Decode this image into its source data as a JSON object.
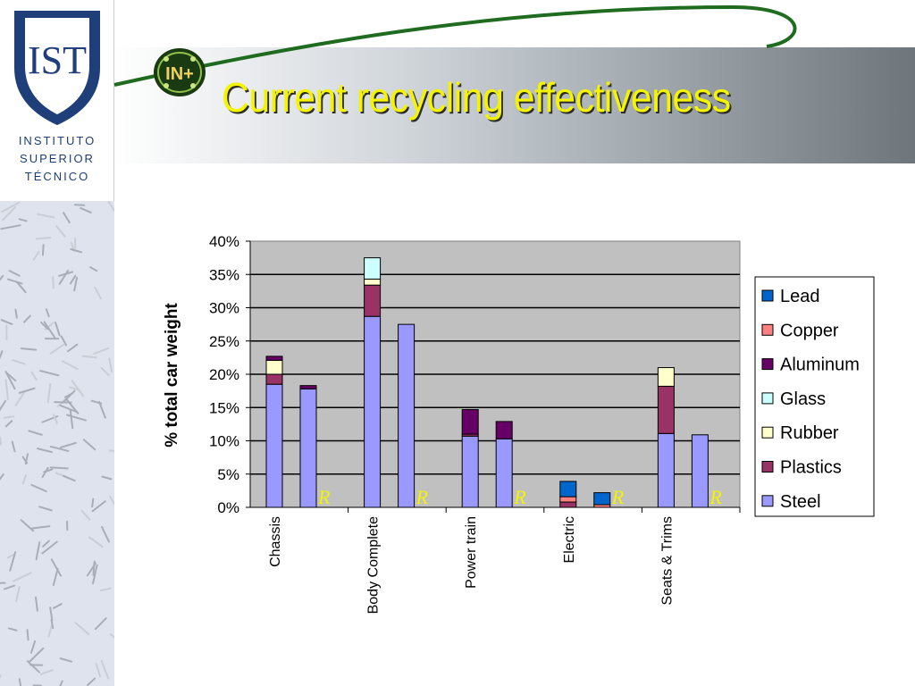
{
  "slide": {
    "title": "Current recycling effectiveness",
    "institution_lines": [
      "INSTITUTO",
      "SUPERIOR",
      "TÉCNICO"
    ],
    "logo_text": "IST",
    "badge_text": "IN+"
  },
  "chart_data": {
    "type": "bar",
    "stacked": true,
    "ylabel": "% total car weight",
    "ylim": [
      0,
      0.4
    ],
    "yticks": [
      "0%",
      "5%",
      "10%",
      "15%",
      "20%",
      "25%",
      "30%",
      "35%",
      "40%"
    ],
    "categories": [
      "Chassis",
      "Body Complete",
      "Power train",
      "Electric",
      "Seats & Trims"
    ],
    "bar_labels": [
      "",
      "R"
    ],
    "grid": true,
    "legend_position": "right",
    "series": [
      {
        "name": "Steel",
        "color": "#9999ff",
        "values": [
          [
            0.185,
            0.178
          ],
          [
            0.287,
            0.275
          ],
          [
            0.107,
            0.103
          ],
          [
            0.0,
            0.0
          ],
          [
            0.111,
            0.109
          ]
        ]
      },
      {
        "name": "Plastics",
        "color": "#993366",
        "values": [
          [
            0.015,
            0.0
          ],
          [
            0.047,
            0.0
          ],
          [
            0.003,
            0.0
          ],
          [
            0.008,
            0.0
          ],
          [
            0.071,
            0.0
          ]
        ]
      },
      {
        "name": "Rubber",
        "color": "#ffffcc",
        "values": [
          [
            0.021,
            0.0
          ],
          [
            0.009,
            0.0
          ],
          [
            0.0,
            0.0
          ],
          [
            0.0,
            0.0
          ],
          [
            0.028,
            0.0
          ]
        ]
      },
      {
        "name": "Glass",
        "color": "#ccffff",
        "values": [
          [
            0.0,
            0.0
          ],
          [
            0.032,
            0.0
          ],
          [
            0.0,
            0.0
          ],
          [
            0.0,
            0.0
          ],
          [
            0.0,
            0.0
          ]
        ]
      },
      {
        "name": "Aluminum",
        "color": "#660066",
        "values": [
          [
            0.006,
            0.005
          ],
          [
            0.0,
            0.0
          ],
          [
            0.037,
            0.026
          ],
          [
            0.0,
            0.0
          ],
          [
            0.0,
            0.0
          ]
        ]
      },
      {
        "name": "Copper",
        "color": "#ff8080",
        "values": [
          [
            0.0,
            0.0
          ],
          [
            0.0,
            0.0
          ],
          [
            0.0,
            0.0
          ],
          [
            0.008,
            0.004
          ],
          [
            0.0,
            0.0
          ]
        ]
      },
      {
        "name": "Lead",
        "color": "#0066cc",
        "values": [
          [
            0.0,
            0.0
          ],
          [
            0.0,
            0.0
          ],
          [
            0.0,
            0.0
          ],
          [
            0.023,
            0.018
          ],
          [
            0.0,
            0.0
          ]
        ]
      }
    ],
    "legend_order": [
      "Lead",
      "Copper",
      "Aluminum",
      "Glass",
      "Rubber",
      "Plastics",
      "Steel"
    ],
    "plot_background": "#c0c0c0",
    "r_marker_color": "#f4f400"
  }
}
